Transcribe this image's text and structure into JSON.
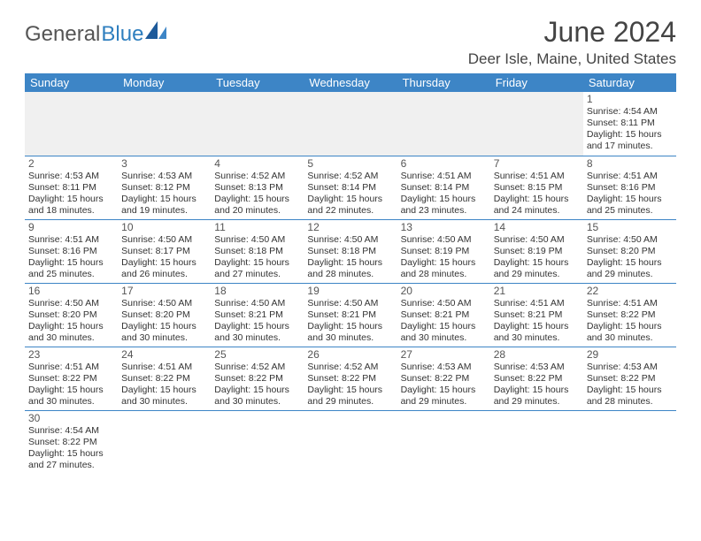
{
  "logo": {
    "text_general": "General",
    "text_blue": "Blue"
  },
  "title": "June 2024",
  "location": "Deer Isle, Maine, United States",
  "colors": {
    "header_bg": "#3d85c6",
    "header_text": "#ffffff",
    "border": "#3d85c6",
    "empty_bg": "#f0f0f0",
    "text": "#333333",
    "title_text": "#444444"
  },
  "daynames": [
    "Sunday",
    "Monday",
    "Tuesday",
    "Wednesday",
    "Thursday",
    "Friday",
    "Saturday"
  ],
  "weeks": [
    [
      null,
      null,
      null,
      null,
      null,
      null,
      {
        "n": "1",
        "sr": "Sunrise: 4:54 AM",
        "ss": "Sunset: 8:11 PM",
        "dl1": "Daylight: 15 hours",
        "dl2": "and 17 minutes."
      }
    ],
    [
      {
        "n": "2",
        "sr": "Sunrise: 4:53 AM",
        "ss": "Sunset: 8:11 PM",
        "dl1": "Daylight: 15 hours",
        "dl2": "and 18 minutes."
      },
      {
        "n": "3",
        "sr": "Sunrise: 4:53 AM",
        "ss": "Sunset: 8:12 PM",
        "dl1": "Daylight: 15 hours",
        "dl2": "and 19 minutes."
      },
      {
        "n": "4",
        "sr": "Sunrise: 4:52 AM",
        "ss": "Sunset: 8:13 PM",
        "dl1": "Daylight: 15 hours",
        "dl2": "and 20 minutes."
      },
      {
        "n": "5",
        "sr": "Sunrise: 4:52 AM",
        "ss": "Sunset: 8:14 PM",
        "dl1": "Daylight: 15 hours",
        "dl2": "and 22 minutes."
      },
      {
        "n": "6",
        "sr": "Sunrise: 4:51 AM",
        "ss": "Sunset: 8:14 PM",
        "dl1": "Daylight: 15 hours",
        "dl2": "and 23 minutes."
      },
      {
        "n": "7",
        "sr": "Sunrise: 4:51 AM",
        "ss": "Sunset: 8:15 PM",
        "dl1": "Daylight: 15 hours",
        "dl2": "and 24 minutes."
      },
      {
        "n": "8",
        "sr": "Sunrise: 4:51 AM",
        "ss": "Sunset: 8:16 PM",
        "dl1": "Daylight: 15 hours",
        "dl2": "and 25 minutes."
      }
    ],
    [
      {
        "n": "9",
        "sr": "Sunrise: 4:51 AM",
        "ss": "Sunset: 8:16 PM",
        "dl1": "Daylight: 15 hours",
        "dl2": "and 25 minutes."
      },
      {
        "n": "10",
        "sr": "Sunrise: 4:50 AM",
        "ss": "Sunset: 8:17 PM",
        "dl1": "Daylight: 15 hours",
        "dl2": "and 26 minutes."
      },
      {
        "n": "11",
        "sr": "Sunrise: 4:50 AM",
        "ss": "Sunset: 8:18 PM",
        "dl1": "Daylight: 15 hours",
        "dl2": "and 27 minutes."
      },
      {
        "n": "12",
        "sr": "Sunrise: 4:50 AM",
        "ss": "Sunset: 8:18 PM",
        "dl1": "Daylight: 15 hours",
        "dl2": "and 28 minutes."
      },
      {
        "n": "13",
        "sr": "Sunrise: 4:50 AM",
        "ss": "Sunset: 8:19 PM",
        "dl1": "Daylight: 15 hours",
        "dl2": "and 28 minutes."
      },
      {
        "n": "14",
        "sr": "Sunrise: 4:50 AM",
        "ss": "Sunset: 8:19 PM",
        "dl1": "Daylight: 15 hours",
        "dl2": "and 29 minutes."
      },
      {
        "n": "15",
        "sr": "Sunrise: 4:50 AM",
        "ss": "Sunset: 8:20 PM",
        "dl1": "Daylight: 15 hours",
        "dl2": "and 29 minutes."
      }
    ],
    [
      {
        "n": "16",
        "sr": "Sunrise: 4:50 AM",
        "ss": "Sunset: 8:20 PM",
        "dl1": "Daylight: 15 hours",
        "dl2": "and 30 minutes."
      },
      {
        "n": "17",
        "sr": "Sunrise: 4:50 AM",
        "ss": "Sunset: 8:20 PM",
        "dl1": "Daylight: 15 hours",
        "dl2": "and 30 minutes."
      },
      {
        "n": "18",
        "sr": "Sunrise: 4:50 AM",
        "ss": "Sunset: 8:21 PM",
        "dl1": "Daylight: 15 hours",
        "dl2": "and 30 minutes."
      },
      {
        "n": "19",
        "sr": "Sunrise: 4:50 AM",
        "ss": "Sunset: 8:21 PM",
        "dl1": "Daylight: 15 hours",
        "dl2": "and 30 minutes."
      },
      {
        "n": "20",
        "sr": "Sunrise: 4:50 AM",
        "ss": "Sunset: 8:21 PM",
        "dl1": "Daylight: 15 hours",
        "dl2": "and 30 minutes."
      },
      {
        "n": "21",
        "sr": "Sunrise: 4:51 AM",
        "ss": "Sunset: 8:21 PM",
        "dl1": "Daylight: 15 hours",
        "dl2": "and 30 minutes."
      },
      {
        "n": "22",
        "sr": "Sunrise: 4:51 AM",
        "ss": "Sunset: 8:22 PM",
        "dl1": "Daylight: 15 hours",
        "dl2": "and 30 minutes."
      }
    ],
    [
      {
        "n": "23",
        "sr": "Sunrise: 4:51 AM",
        "ss": "Sunset: 8:22 PM",
        "dl1": "Daylight: 15 hours",
        "dl2": "and 30 minutes."
      },
      {
        "n": "24",
        "sr": "Sunrise: 4:51 AM",
        "ss": "Sunset: 8:22 PM",
        "dl1": "Daylight: 15 hours",
        "dl2": "and 30 minutes."
      },
      {
        "n": "25",
        "sr": "Sunrise: 4:52 AM",
        "ss": "Sunset: 8:22 PM",
        "dl1": "Daylight: 15 hours",
        "dl2": "and 30 minutes."
      },
      {
        "n": "26",
        "sr": "Sunrise: 4:52 AM",
        "ss": "Sunset: 8:22 PM",
        "dl1": "Daylight: 15 hours",
        "dl2": "and 29 minutes."
      },
      {
        "n": "27",
        "sr": "Sunrise: 4:53 AM",
        "ss": "Sunset: 8:22 PM",
        "dl1": "Daylight: 15 hours",
        "dl2": "and 29 minutes."
      },
      {
        "n": "28",
        "sr": "Sunrise: 4:53 AM",
        "ss": "Sunset: 8:22 PM",
        "dl1": "Daylight: 15 hours",
        "dl2": "and 29 minutes."
      },
      {
        "n": "29",
        "sr": "Sunrise: 4:53 AM",
        "ss": "Sunset: 8:22 PM",
        "dl1": "Daylight: 15 hours",
        "dl2": "and 28 minutes."
      }
    ],
    [
      {
        "n": "30",
        "sr": "Sunrise: 4:54 AM",
        "ss": "Sunset: 8:22 PM",
        "dl1": "Daylight: 15 hours",
        "dl2": "and 27 minutes."
      },
      null,
      null,
      null,
      null,
      null,
      null
    ]
  ]
}
